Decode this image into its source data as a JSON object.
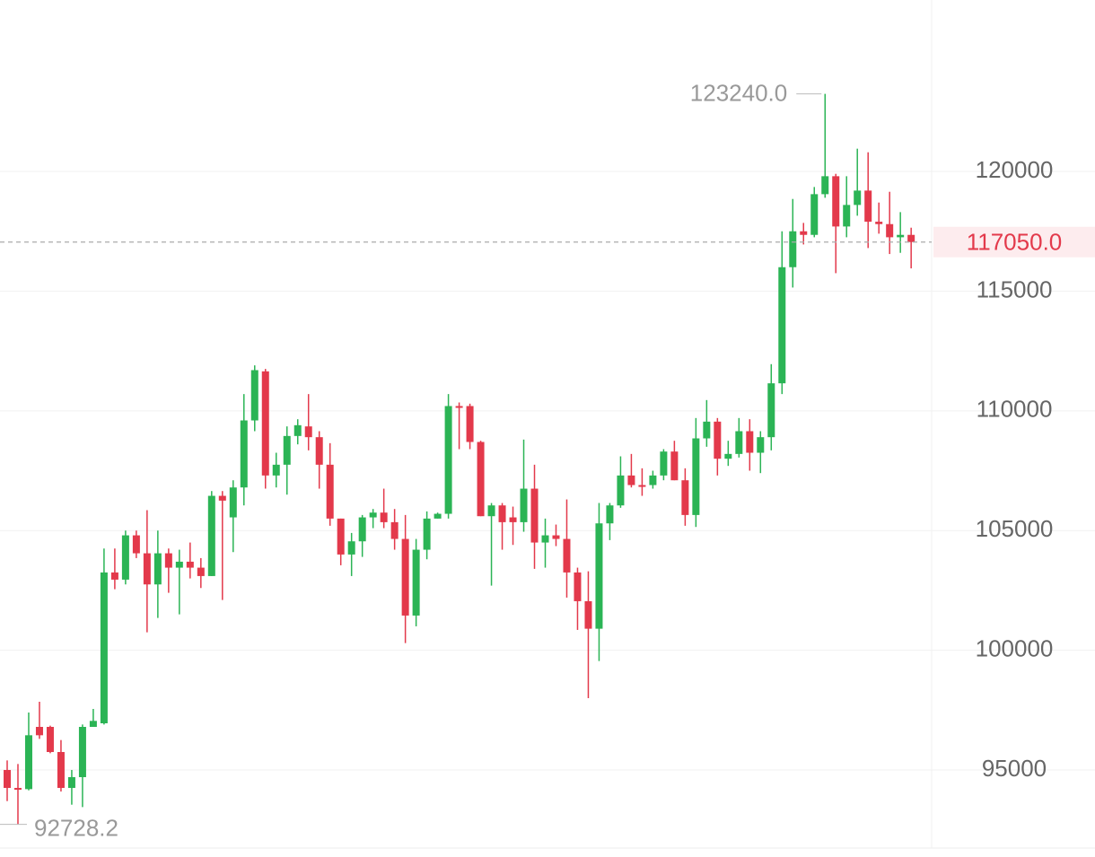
{
  "chart_data": {
    "type": "candlestick",
    "up_color": "#2bb455",
    "down_color": "#e3394b",
    "ylim": [
      91740,
      127160
    ],
    "yticks": [
      95000,
      100000,
      105000,
      110000,
      115000,
      120000
    ],
    "grid": true,
    "open": [
      95000,
      94250,
      94200,
      96800,
      96800,
      95750,
      94250,
      94700,
      96800,
      96950,
      103250,
      102950,
      104800,
      104050,
      102750,
      104050,
      103450,
      103700,
      103450,
      103100,
      106450,
      105550,
      106800,
      109600,
      111650,
      107300,
      107750,
      108950,
      109350,
      108900,
      107750,
      105500,
      104000,
      104550,
      105550,
      105750,
      105350,
      104650,
      101450,
      104200,
      105500,
      105700,
      110200,
      110200,
      108700,
      105600,
      106050,
      105550,
      105350,
      106750,
      104500,
      104800,
      104650,
      103250,
      102050,
      100900,
      105300,
      106050,
      107300,
      106900,
      106900,
      107300,
      108300,
      107100,
      105650,
      108850,
      109550,
      108000,
      108200,
      109150,
      108250,
      108900,
      111150,
      116000,
      117500,
      117350,
      119050,
      119800,
      117700,
      118600,
      119200,
      117900,
      117800,
      117250,
      117350
    ],
    "high": [
      95400,
      95250,
      97400,
      97850,
      96850,
      96250,
      95000,
      96900,
      97550,
      104250,
      104250,
      105000,
      105000,
      105850,
      105000,
      104250,
      104200,
      104500,
      103850,
      106650,
      106650,
      107100,
      110700,
      111900,
      111750,
      108250,
      109350,
      109650,
      110700,
      109150,
      108650,
      105500,
      104900,
      105650,
      105900,
      106750,
      105900,
      105650,
      104650,
      105800,
      105750,
      110700,
      110350,
      110300,
      108750,
      106150,
      106150,
      106000,
      108800,
      107750,
      105500,
      105250,
      106300,
      103450,
      103300,
      106150,
      106150,
      108100,
      108200,
      107600,
      107500,
      108400,
      108750,
      107600,
      109700,
      110450,
      109700,
      108750,
      109700,
      109650,
      109150,
      111950,
      117500,
      118850,
      117850,
      119350,
      123240,
      119900,
      119800,
      120950,
      120800,
      118700,
      119150,
      118300,
      117650
    ],
    "low": [
      93700,
      92728.2,
      94150,
      96300,
      95700,
      94100,
      93550,
      93450,
      96800,
      96900,
      102550,
      102750,
      103850,
      100750,
      101350,
      102400,
      101500,
      103000,
      102600,
      103100,
      102100,
      104100,
      106050,
      109150,
      106750,
      106800,
      106500,
      108600,
      108350,
      106750,
      105200,
      103550,
      103100,
      103900,
      105100,
      105100,
      104200,
      100300,
      101000,
      103800,
      105500,
      105500,
      108400,
      108400,
      105600,
      102700,
      104200,
      104400,
      104950,
      103400,
      103450,
      104350,
      102200,
      100850,
      98000,
      99550,
      104600,
      105950,
      106800,
      106450,
      106750,
      107100,
      107100,
      105200,
      105150,
      108500,
      107300,
      107700,
      108050,
      107500,
      107400,
      108350,
      110700,
      115150,
      116950,
      117250,
      118900,
      115750,
      117250,
      118150,
      116800,
      117400,
      116550,
      116600,
      115950
    ],
    "close": [
      94250,
      94200,
      96450,
      96450,
      95750,
      94250,
      94700,
      96800,
      97050,
      103250,
      102950,
      104800,
      104050,
      102750,
      104050,
      103450,
      103700,
      103450,
      103100,
      106450,
      106250,
      106800,
      109600,
      111700,
      107300,
      107750,
      108950,
      109400,
      108900,
      107750,
      105500,
      104000,
      104550,
      105550,
      105750,
      105350,
      104650,
      101450,
      104200,
      105500,
      105700,
      110200,
      110150,
      108700,
      105600,
      106050,
      105350,
      105350,
      106750,
      104500,
      104800,
      104650,
      103250,
      102050,
      100900,
      105300,
      106050,
      107300,
      106900,
      106850,
      107300,
      108300,
      107100,
      105650,
      108850,
      109550,
      108000,
      108200,
      109150,
      108250,
      108900,
      111150,
      116000,
      117500,
      117350,
      119050,
      119800,
      117700,
      118600,
      119200,
      117900,
      117800,
      117250,
      117350,
      117050
    ],
    "max_marker": {
      "value": 123240,
      "label": "123240.0"
    },
    "min_marker": {
      "value": 92728.2,
      "label": "92728.2"
    },
    "last_price": {
      "value": 117050,
      "label": "117050.0"
    }
  }
}
